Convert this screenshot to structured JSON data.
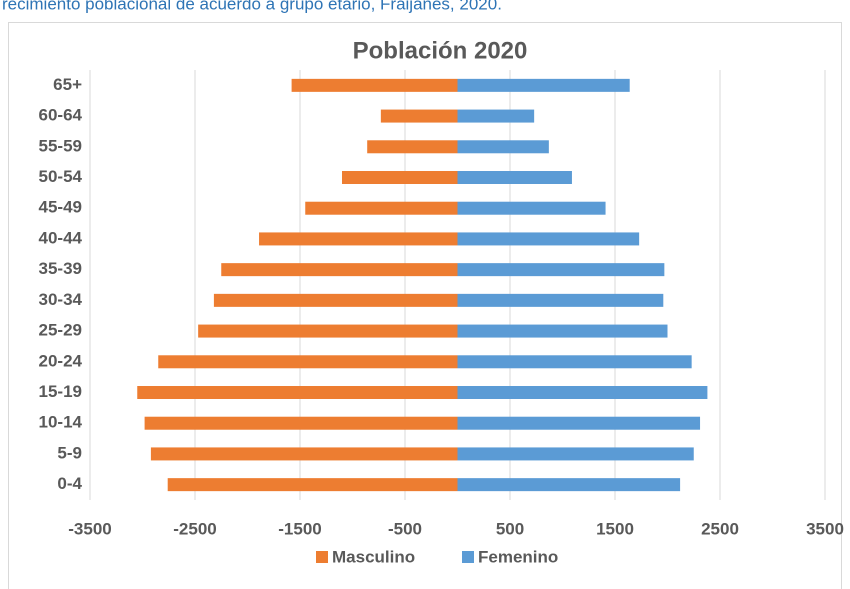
{
  "caption": "recimiento poblacional de acuerdo a grupo etario, Fraijanes, 2020.",
  "chart_data": {
    "type": "bar",
    "orientation": "horizontal",
    "title": "Población 2020",
    "categories": [
      "0-4",
      "5-9",
      "10-14",
      "15-19",
      "20-24",
      "25-29",
      "30-34",
      "35-39",
      "40-44",
      "45-49",
      "50-54",
      "55-59",
      "60-64",
      "65+"
    ],
    "series": [
      {
        "name": "Masculino",
        "color": "#ed7d31",
        "values": [
          -2760,
          -2920,
          -2980,
          -3050,
          -2850,
          -2470,
          -2320,
          -2250,
          -1890,
          -1450,
          -1100,
          -860,
          -730,
          -1580
        ]
      },
      {
        "name": "Femenino",
        "color": "#5b9bd5",
        "values": [
          2120,
          2250,
          2310,
          2380,
          2230,
          2000,
          1960,
          1970,
          1730,
          1410,
          1090,
          870,
          730,
          1640
        ]
      }
    ],
    "xlim": [
      -3500,
      3500
    ],
    "xticks": [
      -3500,
      -2500,
      -1500,
      -500,
      500,
      1500,
      2500,
      3500
    ],
    "grid": true,
    "legend": "bottom"
  }
}
